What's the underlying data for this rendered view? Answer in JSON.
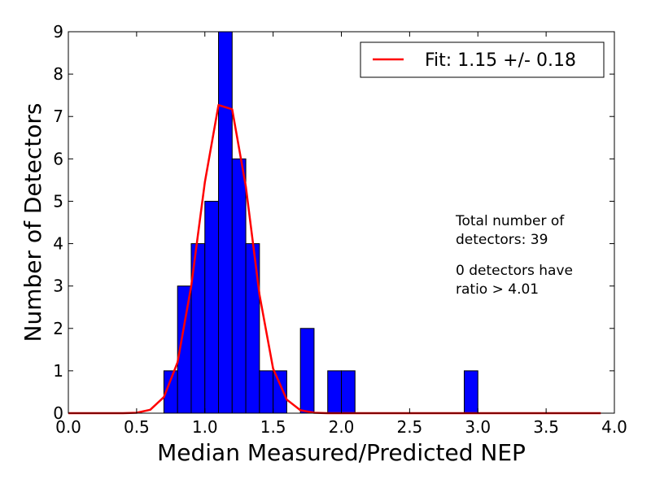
{
  "chart_data": {
    "type": "bar",
    "title": "",
    "xlabel": "Median Measured/Predicted NEP",
    "ylabel": "Number of Detectors",
    "xlim": [
      0.0,
      4.0
    ],
    "ylim": [
      0,
      9
    ],
    "x_ticks": [
      "0.0",
      "0.5",
      "1.0",
      "1.5",
      "2.0",
      "2.5",
      "3.0",
      "3.5",
      "4.0"
    ],
    "y_ticks": [
      "0",
      "1",
      "2",
      "3",
      "4",
      "5",
      "6",
      "7",
      "8",
      "9"
    ],
    "bin_width": 0.1,
    "histogram": {
      "color": "#0000ff",
      "bins": [
        {
          "x": 0.7,
          "count": 1
        },
        {
          "x": 0.8,
          "count": 3
        },
        {
          "x": 0.9,
          "count": 4
        },
        {
          "x": 1.0,
          "count": 5
        },
        {
          "x": 1.1,
          "count": 9
        },
        {
          "x": 1.2,
          "count": 6
        },
        {
          "x": 1.3,
          "count": 4
        },
        {
          "x": 1.4,
          "count": 1
        },
        {
          "x": 1.5,
          "count": 1
        },
        {
          "x": 1.7,
          "count": 2
        },
        {
          "x": 1.9,
          "count": 1
        },
        {
          "x": 2.0,
          "count": 1
        },
        {
          "x": 2.9,
          "count": 1
        }
      ]
    },
    "series": [
      {
        "name": "Fit: 1.15 +/- 0.18",
        "type": "line",
        "color": "#ff0000",
        "x": [
          0.0,
          0.1,
          0.2,
          0.3,
          0.4,
          0.5,
          0.6,
          0.7,
          0.8,
          0.9,
          1.0,
          1.1,
          1.2,
          1.3,
          1.4,
          1.5,
          1.6,
          1.7,
          1.8,
          1.9,
          2.0,
          2.1,
          2.2,
          2.3,
          2.4,
          2.5,
          2.6,
          2.7,
          2.8,
          2.9,
          3.0,
          3.1,
          3.2,
          3.3,
          3.4,
          3.5,
          3.6,
          3.7,
          3.8,
          3.9
        ],
        "y": [
          0,
          0,
          0,
          0,
          0,
          0.01,
          0.08,
          0.38,
          1.2,
          3.0,
          5.45,
          7.27,
          7.17,
          5.35,
          2.8,
          1.05,
          0.32,
          0.07,
          0.01,
          0,
          0,
          0,
          0,
          0,
          0,
          0,
          0,
          0,
          0,
          0,
          0,
          0,
          0,
          0,
          0,
          0,
          0,
          0,
          0,
          0
        ]
      }
    ],
    "legend": {
      "placement": "top-right",
      "label": "Fit: 1.15 +/- 0.18"
    },
    "annotations": [
      {
        "lines": [
          "Total number of",
          "detectors: 39"
        ]
      },
      {
        "lines": [
          "0 detectors have",
          "ratio > 4.01"
        ]
      }
    ],
    "grid": false
  }
}
